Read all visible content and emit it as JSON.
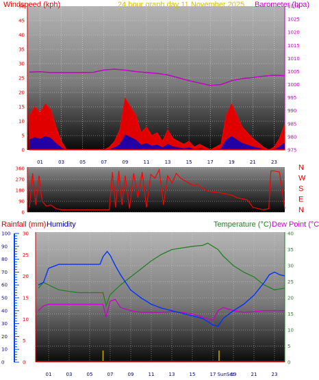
{
  "header": {
    "windspeed_label": "Windspeed (kph)",
    "title": "24 hour graph day   11 November 2025",
    "barometer_label": "Barometer (hpa)"
  },
  "lower_header": {
    "rainfall_label": "Rainfall (mm)",
    "humidity_label": "Humidity",
    "temperature_label": "Temperature (°C)",
    "dewpoint_label": "Dew Point (°C)",
    "sunset_label": "SunSet"
  },
  "direction_labels": [
    "N",
    "W",
    "S",
    "E",
    "N"
  ],
  "colors": {
    "wind": "#e00000",
    "gust": "#ff0000",
    "wind_low": "#0000c0",
    "barometer": "#c000c0",
    "humidity": "#0033ff",
    "temperature": "#208020",
    "dewpoint": "#cc00cc",
    "rainfall_axis": "#0044ff",
    "sun_marker": "#c8b000",
    "title": "#d4c000"
  },
  "chart_data": [
    {
      "type": "area",
      "name": "wind-barometer",
      "x_ticks": [
        "01",
        "03",
        "05",
        "07",
        "09",
        "11",
        "13",
        "15",
        "17",
        "19",
        "21",
        "23"
      ],
      "left_axis": {
        "ticks": [
          0,
          5,
          10,
          15,
          20,
          25,
          30,
          35,
          40,
          45,
          50
        ],
        "ylim": [
          0,
          50
        ]
      },
      "right_axis": {
        "ticks": [
          975,
          980,
          985,
          990,
          995,
          1000,
          1005,
          1010,
          1015,
          1020,
          1025,
          1030
        ],
        "ylim": [
          975,
          1030
        ]
      },
      "series": [
        {
          "name": "Windspeed (kph)",
          "axis": "left",
          "x": [
            0,
            0.5,
            1,
            1.5,
            2,
            2.5,
            3,
            3.5,
            7,
            7.5,
            8,
            8.5,
            9,
            9.5,
            10,
            10.5,
            11,
            11.5,
            12,
            12.5,
            13,
            13.5,
            14,
            14.5,
            15,
            15.5,
            16,
            16.5,
            17,
            17.5,
            18,
            18.5,
            19,
            19.5,
            20,
            20.5,
            21,
            22,
            22.5,
            23,
            23.5,
            24
          ],
          "values": [
            12,
            15,
            13,
            16,
            14,
            8,
            3,
            0,
            0,
            1,
            3,
            7,
            18,
            15,
            12,
            6,
            8,
            5,
            6,
            3,
            7,
            4,
            3,
            2,
            3,
            1,
            2,
            1,
            0,
            1,
            2,
            12,
            16,
            12,
            8,
            6,
            4,
            1,
            0,
            1,
            4,
            9
          ]
        },
        {
          "name": "Barometer (hpa)",
          "axis": "right",
          "x": [
            0,
            1,
            2,
            3,
            4,
            5,
            6,
            7,
            8,
            9,
            10,
            11,
            12,
            13,
            14,
            15,
            16,
            17,
            18,
            19,
            20,
            21,
            22,
            23,
            24
          ],
          "values": [
            1004.8,
            1004.9,
            1004.6,
            1004.6,
            1004.6,
            1004.6,
            1004.7,
            1005.6,
            1005.9,
            1005.5,
            1005.0,
            1004.6,
            1004.3,
            1003.7,
            1002.6,
            1001.5,
            1000.6,
            999.7,
            1000.0,
            1001.5,
            1002.3,
            1002.7,
            1003.2,
            1003.6,
            1003.4
          ]
        }
      ]
    },
    {
      "type": "line",
      "name": "wind-direction",
      "x_ticks": [
        "01",
        "03",
        "05",
        "07",
        "09",
        "11",
        "13",
        "15",
        "17",
        "19",
        "21",
        "23"
      ],
      "y_ticks": [
        0,
        90,
        180,
        270,
        360
      ],
      "ylim": [
        0,
        360
      ],
      "series": [
        {
          "name": "Wind direction",
          "x": [
            0,
            0.3,
            0.6,
            0.9,
            1.2,
            1.6,
            2,
            2.5,
            3,
            7.5,
            7.8,
            8.1,
            8.4,
            8.7,
            9,
            9.4,
            9.8,
            10.2,
            10.6,
            11,
            11.4,
            11.8,
            12.2,
            12.6,
            13,
            13.4,
            13.8,
            14.2,
            14.6,
            15,
            15.4,
            15.8,
            16.2,
            16.6,
            17,
            17.5,
            18,
            18.5,
            19,
            19.5,
            20,
            20.5,
            21,
            21.5,
            22,
            22.5,
            22.7,
            23,
            23.5,
            24
          ],
          "values": [
            40,
            320,
            60,
            300,
            90,
            50,
            60,
            30,
            20,
            20,
            330,
            40,
            340,
            60,
            300,
            30,
            320,
            120,
            330,
            40,
            310,
            280,
            350,
            60,
            300,
            240,
            320,
            280,
            260,
            240,
            220,
            230,
            200,
            180,
            170,
            165,
            160,
            150,
            140,
            120,
            110,
            100,
            40,
            30,
            20,
            30,
            340,
            340,
            330,
            30
          ]
        }
      ]
    },
    {
      "type": "line",
      "name": "temp-humidity-rain",
      "x_ticks": [
        "01",
        "03",
        "05",
        "07",
        "09",
        "11",
        "13",
        "15",
        "17",
        "19",
        "21",
        "23"
      ],
      "humidity_axis": {
        "ticks": [
          0,
          10,
          20,
          30,
          40,
          50,
          60,
          70,
          80,
          90,
          100
        ],
        "ylim": [
          0,
          100
        ]
      },
      "rain_axis": {
        "ticks": [
          0,
          5,
          10,
          15,
          20,
          25,
          30
        ],
        "ylim": [
          0,
          30
        ]
      },
      "temp_axis": {
        "ticks": [
          0,
          5,
          10,
          15,
          20,
          25,
          30,
          35,
          40
        ],
        "ylim": [
          0,
          40
        ]
      },
      "series": [
        {
          "name": "Humidity",
          "axis": "humidity",
          "x": [
            0,
            0.5,
            1,
            2,
            3,
            4,
            5,
            6,
            6.3,
            6.7,
            7,
            7.5,
            8,
            8.5,
            9,
            10,
            11,
            12,
            13,
            14,
            15,
            16,
            17,
            17.5,
            18,
            19,
            20,
            21,
            22,
            22.5,
            23,
            23.5,
            24
          ],
          "values": [
            60,
            62,
            73,
            76,
            76,
            76,
            76,
            76,
            82,
            86,
            83,
            75,
            68,
            62,
            56,
            50,
            45,
            42,
            40,
            38,
            36,
            34,
            29,
            28,
            34,
            40,
            45,
            52,
            62,
            68,
            70,
            68,
            67
          ]
        },
        {
          "name": "Temperature (°C)",
          "axis": "temp",
          "x": [
            0,
            0.5,
            1,
            2,
            3,
            4,
            5,
            6,
            6.3,
            6.6,
            7,
            8,
            9,
            10,
            11,
            12,
            13,
            14,
            15,
            16,
            16.5,
            17,
            17.5,
            18,
            19,
            20,
            21,
            22,
            23,
            24
          ],
          "values": [
            23,
            24.8,
            24,
            22.5,
            22,
            21.6,
            21.6,
            21.6,
            21.6,
            17.5,
            21,
            24,
            26.5,
            29,
            31.5,
            33.5,
            35,
            35.5,
            36,
            36.3,
            37,
            36,
            35,
            33,
            30,
            28,
            26.5,
            24,
            22.5,
            23
          ]
        },
        {
          "name": "Dew Point (°C)",
          "axis": "temp",
          "x": [
            0,
            0.5,
            1,
            2,
            3,
            4,
            5,
            6,
            6.3,
            6.6,
            7,
            7.5,
            8,
            9,
            10,
            11,
            12,
            13,
            14,
            15,
            16,
            17,
            17.5,
            18,
            19,
            20,
            21,
            22,
            23,
            24
          ],
          "values": [
            16,
            17.5,
            18,
            18,
            18,
            18,
            18,
            18,
            18,
            14,
            19,
            19.5,
            17,
            16,
            15.5,
            15.5,
            15.5,
            15.7,
            15.5,
            15,
            14,
            13,
            16,
            17,
            16,
            15.5,
            15.7,
            16,
            16,
            16
          ]
        }
      ]
    }
  ]
}
